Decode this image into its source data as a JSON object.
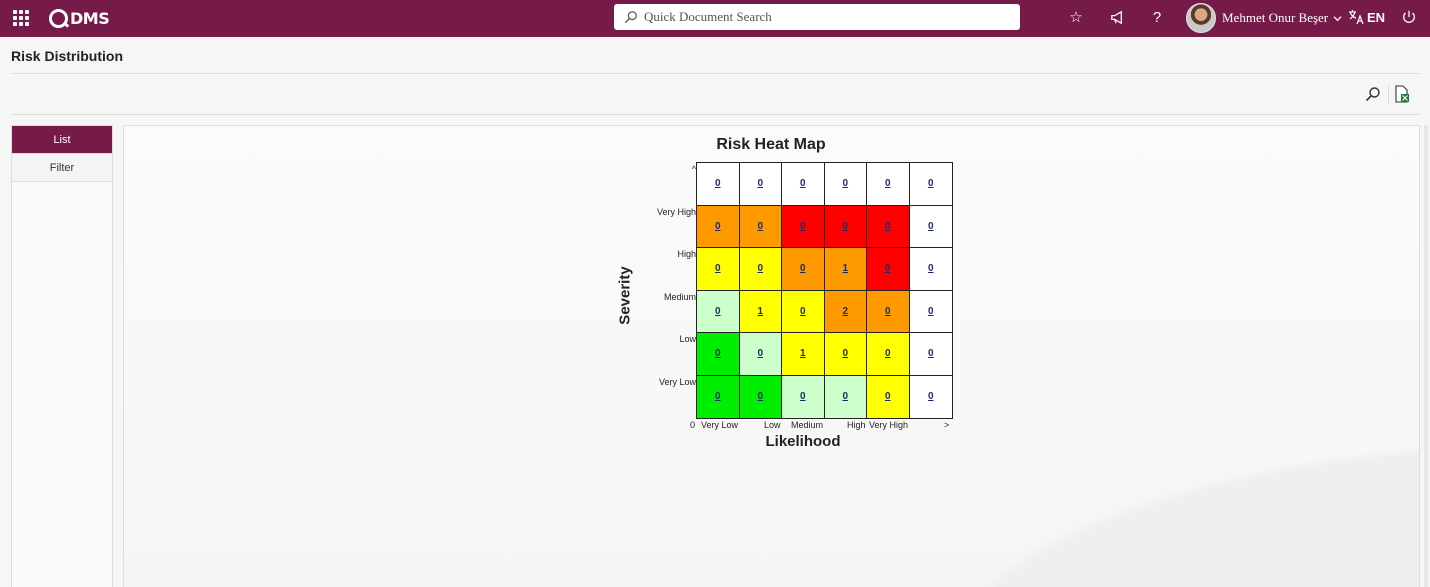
{
  "app": {
    "logo_text": "DMS"
  },
  "header": {
    "search_placeholder": "Quick Document Search",
    "user_name": "Mehmet Onur Beşer",
    "language": "EN"
  },
  "page": {
    "title": "Risk Distribution"
  },
  "side_tabs": [
    {
      "label": "List",
      "active": true
    },
    {
      "label": "Filter",
      "active": false
    }
  ],
  "colors": {
    "brand": "#761b49",
    "red": "#ff0000",
    "orange": "#ff9900",
    "yellow": "#ffff00",
    "light_green": "#ccffcc",
    "green": "#00ee00",
    "white": "#ffffff"
  },
  "heatmap": {
    "title": "Risk Heat Map",
    "y_axis_label": "Severity",
    "x_axis_label": "Likelihood",
    "y_ticks": [
      "^",
      "Very High",
      "High",
      "Medium",
      "Low",
      "Very Low"
    ],
    "x_ticks": [
      "0",
      "Very Low",
      "Low",
      "Medium",
      "High",
      "Very High",
      ">"
    ],
    "rows": [
      {
        "values": [
          "0",
          "0",
          "0",
          "0",
          "0",
          "0"
        ],
        "colors": [
          "white",
          "white",
          "white",
          "white",
          "white",
          "white"
        ]
      },
      {
        "values": [
          "0",
          "0",
          "0",
          "0",
          "0",
          "0"
        ],
        "colors": [
          "orange",
          "orange",
          "red",
          "red",
          "red",
          "white"
        ]
      },
      {
        "values": [
          "0",
          "0",
          "0",
          "1",
          "0",
          "0"
        ],
        "colors": [
          "yellow",
          "yellow",
          "orange",
          "orange",
          "red",
          "white"
        ]
      },
      {
        "values": [
          "0",
          "1",
          "0",
          "2",
          "0",
          "0"
        ],
        "colors": [
          "light_green",
          "yellow",
          "yellow",
          "orange",
          "orange",
          "white"
        ]
      },
      {
        "values": [
          "0",
          "0",
          "1",
          "0",
          "0",
          "0"
        ],
        "colors": [
          "green",
          "light_green",
          "yellow",
          "yellow",
          "yellow",
          "white"
        ]
      },
      {
        "values": [
          "0",
          "0",
          "0",
          "0",
          "0",
          "0"
        ],
        "colors": [
          "green",
          "green",
          "light_green",
          "light_green",
          "yellow",
          "white"
        ]
      }
    ]
  }
}
